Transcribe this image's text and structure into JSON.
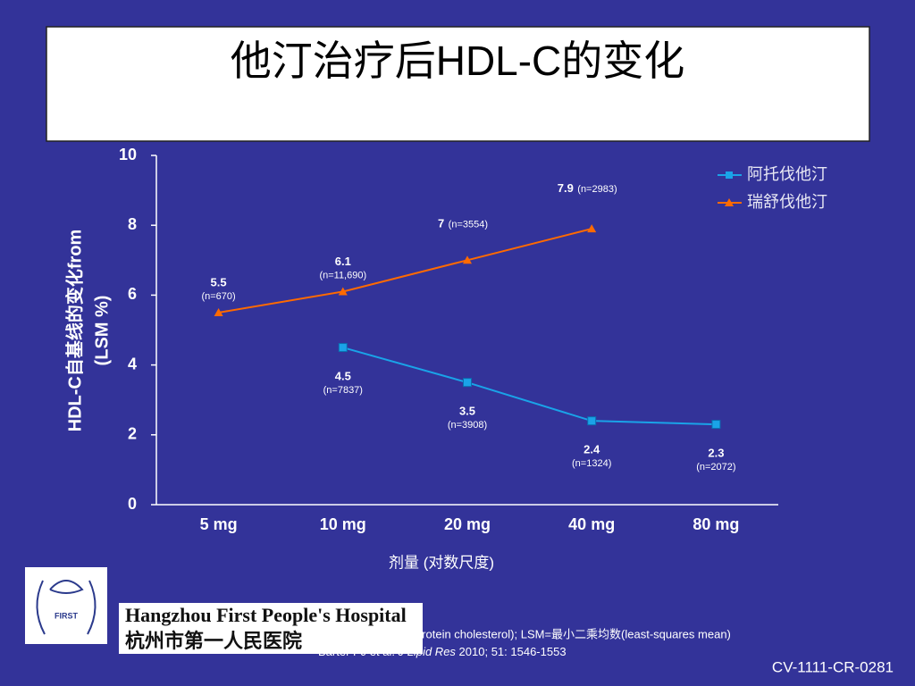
{
  "chart_data": {
    "type": "line",
    "title": "他汀治疗后HDL-C的变化",
    "y_label_lines": [
      "HDL-C自基线的变化from",
      "(LSM %)"
    ],
    "x_label": "剂量 (对数尺度)",
    "categories": [
      "5 mg",
      "10 mg",
      "20 mg",
      "40 mg",
      "80 mg"
    ],
    "ylim": [
      0,
      10
    ],
    "yticks": [
      0,
      2,
      4,
      6,
      8,
      10
    ],
    "legend": "top-right",
    "series": [
      {
        "name": "阿托伐他汀",
        "color": "#1aa3e8",
        "marker": "square",
        "values": [
          null,
          4.5,
          3.5,
          2.4,
          2.3
        ],
        "n_labels": [
          null,
          "(n=7837)",
          "(n=3908)",
          "(n=1324)",
          "(n=2072)"
        ]
      },
      {
        "name": "瑞舒伐他汀",
        "color": "#ff6a00",
        "marker": "triangle",
        "values": [
          5.5,
          6.1,
          7.0,
          7.9,
          null
        ],
        "n_labels": [
          "(n=670)",
          "(n=11,690)",
          "(n=3554)",
          "(n=2983)",
          null
        ]
      }
    ]
  },
  "footnote": "high-density lipoprotein cholesterol); LSM=最小二乘均数(least-squares mean)",
  "citation": {
    "authors": "Barter PJ et al.",
    "journal": "J Lipid Res",
    "details": "2010; 51: 1546-1553"
  },
  "code": "CV-1111-CR-0281",
  "logo": {
    "emblem": "FIRST",
    "name_en": "Hangzhou First People's Hospital",
    "name_cn": "杭州市第一人民医院"
  }
}
